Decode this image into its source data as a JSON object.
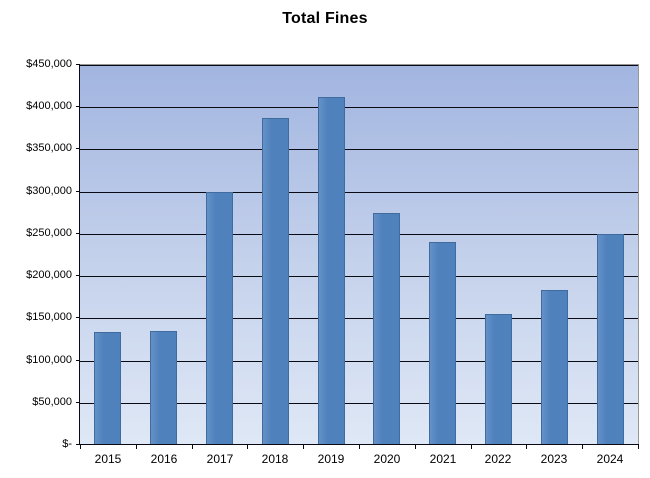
{
  "chart_data": {
    "type": "bar",
    "title": "Total Fines",
    "categories": [
      "2015",
      "2016",
      "2017",
      "2018",
      "2019",
      "2020",
      "2021",
      "2022",
      "2023",
      "2024"
    ],
    "values": [
      134000,
      135000,
      300000,
      387000,
      412000,
      275000,
      240000,
      155000,
      183000,
      250000
    ],
    "xlabel": "",
    "ylabel": "",
    "ylim": [
      0,
      450000
    ],
    "ytick_step": 50000,
    "yticks": [
      {
        "value": 450000,
        "label": "$450,000"
      },
      {
        "value": 400000,
        "label": "$400,000"
      },
      {
        "value": 350000,
        "label": "$350,000"
      },
      {
        "value": 300000,
        "label": "$300,000"
      },
      {
        "value": 250000,
        "label": "$250,000"
      },
      {
        "value": 200000,
        "label": "$200,000"
      },
      {
        "value": 150000,
        "label": "$150,000"
      },
      {
        "value": 100000,
        "label": "$100,000"
      },
      {
        "value": 50000,
        "label": "$50,000"
      },
      {
        "value": 0,
        "label": "$-"
      }
    ],
    "grid": "horizontal",
    "legend": "none",
    "colors": {
      "bar_fill": "#4f81bd",
      "bar_fill_light": "#6591c7",
      "bar_border": "#3f6b9e",
      "plot_bg_top": "#a2b5e0",
      "plot_bg_mid": "#c6d3ec",
      "plot_bg_bottom": "#dfe8f6",
      "gridline": "#0a0a14",
      "axis": "#0a0a14",
      "plot_border": "#969696",
      "text": "#000000"
    }
  }
}
